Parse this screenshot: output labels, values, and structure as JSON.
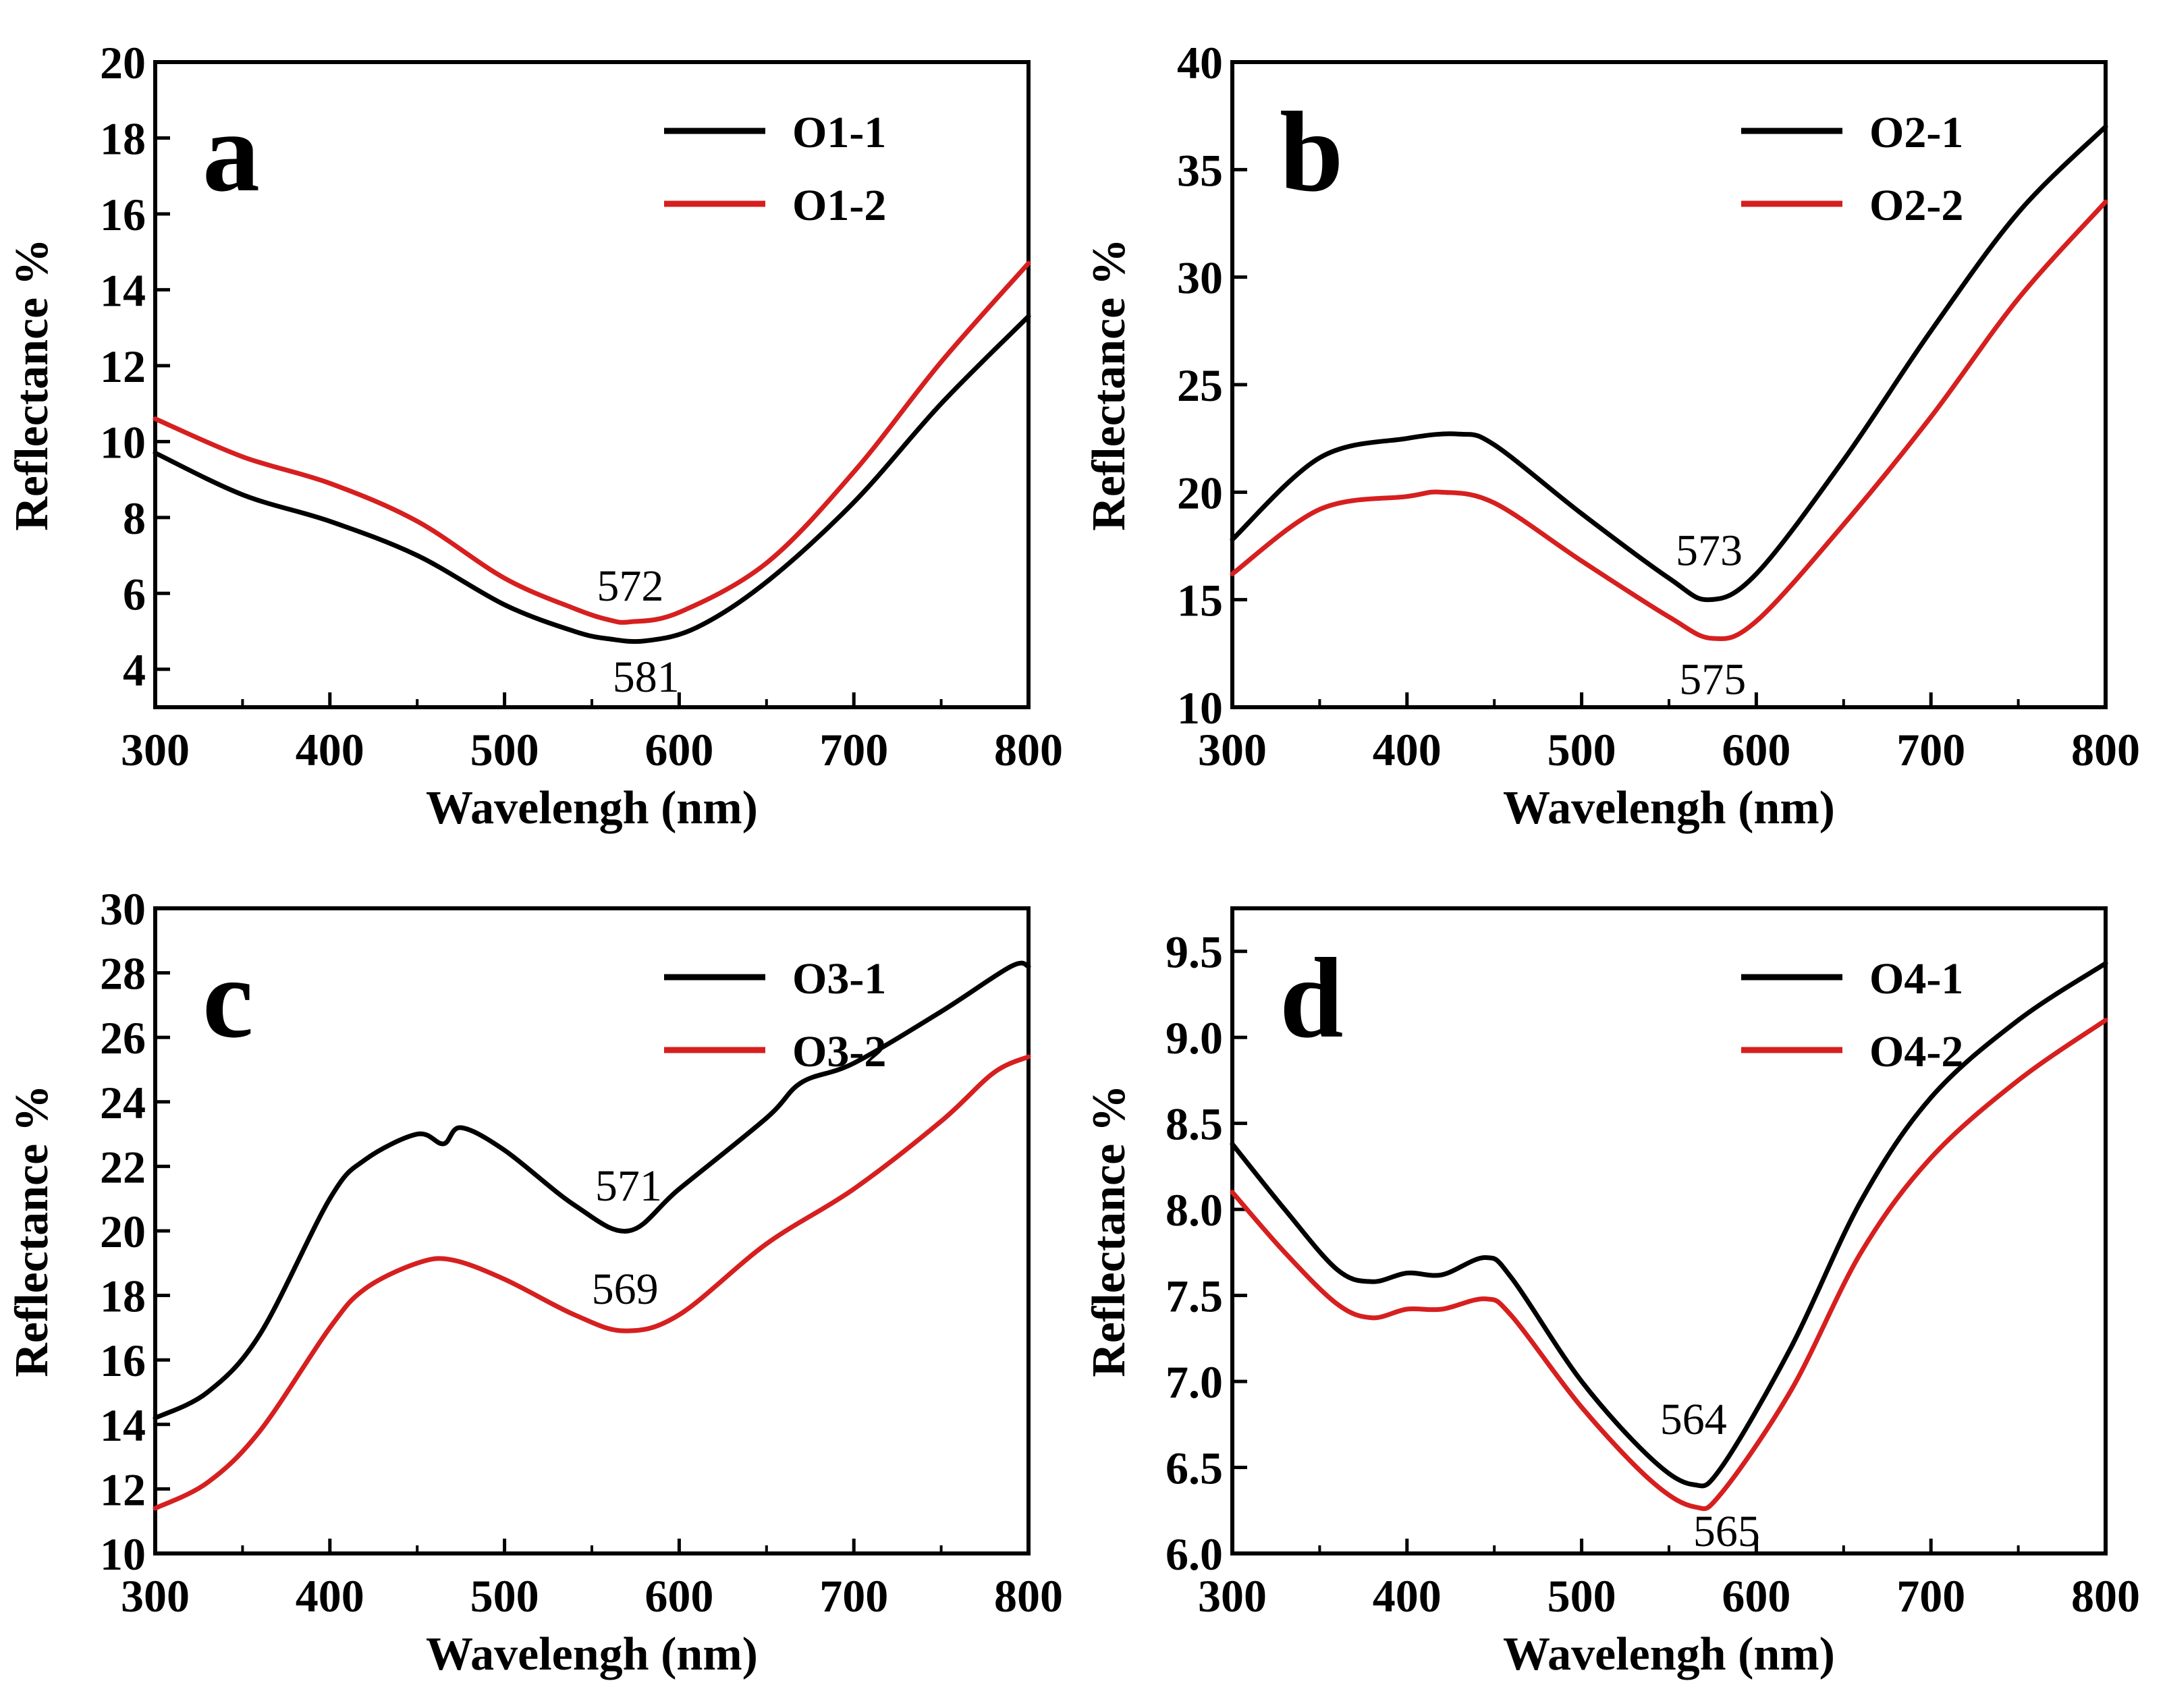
{
  "chart_data": [
    {
      "type": "line",
      "panel_label": "a",
      "xlabel": "Wavelengh (nm)",
      "ylabel": "Reflectance %",
      "xlim": [
        300,
        800
      ],
      "ylim": [
        3,
        20
      ],
      "xticks": [
        300,
        400,
        500,
        600,
        700,
        800
      ],
      "yticks": [
        4,
        6,
        8,
        10,
        12,
        14,
        16,
        18,
        20
      ],
      "legend_position": "top-right",
      "series": [
        {
          "name": "O1-1",
          "color": "#000000",
          "x": [
            300,
            350,
            400,
            450,
            500,
            540,
            560,
            581,
            610,
            650,
            700,
            750,
            800
          ],
          "y": [
            9.7,
            8.6,
            7.9,
            7.0,
            5.7,
            5.0,
            4.8,
            4.75,
            5.1,
            6.3,
            8.4,
            11.0,
            13.3
          ]
        },
        {
          "name": "O1-2",
          "color": "#d61f1f",
          "x": [
            300,
            350,
            400,
            450,
            500,
            540,
            560,
            572,
            600,
            650,
            700,
            750,
            800
          ],
          "y": [
            10.6,
            9.6,
            8.9,
            7.9,
            6.4,
            5.6,
            5.3,
            5.25,
            5.5,
            6.8,
            9.2,
            12.1,
            14.7
          ]
        }
      ],
      "annotations": [
        {
          "text": "572",
          "x": 572,
          "y": 6.2
        },
        {
          "text": "581",
          "x": 581,
          "y": 3.8
        }
      ]
    },
    {
      "type": "line",
      "panel_label": "b",
      "xlabel": "Wavelengh (nm)",
      "ylabel": "Reflectance %",
      "xlim": [
        300,
        800
      ],
      "ylim": [
        10,
        40
      ],
      "xticks": [
        300,
        400,
        500,
        600,
        700,
        800
      ],
      "yticks": [
        10,
        15,
        20,
        25,
        30,
        35,
        40
      ],
      "legend_position": "top-right",
      "series": [
        {
          "name": "O2-1",
          "color": "#000000",
          "x": [
            300,
            350,
            400,
            430,
            450,
            500,
            550,
            573,
            600,
            650,
            700,
            750,
            800
          ],
          "y": [
            17.8,
            21.6,
            22.5,
            22.7,
            22.2,
            19.0,
            16.0,
            15.0,
            16.2,
            21.5,
            27.5,
            33.0,
            37.0
          ]
        },
        {
          "name": "O2-2",
          "color": "#d61f1f",
          "x": [
            300,
            350,
            400,
            420,
            450,
            500,
            550,
            575,
            600,
            650,
            700,
            750,
            800
          ],
          "y": [
            16.2,
            19.2,
            19.8,
            20.0,
            19.5,
            16.8,
            14.2,
            13.2,
            14.0,
            18.5,
            23.5,
            29.0,
            33.5
          ]
        }
      ],
      "annotations": [
        {
          "text": "573",
          "x": 573,
          "y": 17.3
        },
        {
          "text": "575",
          "x": 575,
          "y": 11.3
        }
      ]
    },
    {
      "type": "line",
      "panel_label": "c",
      "xlabel": "Wavelengh (nm)",
      "ylabel": "Reflectance %",
      "xlim": [
        300,
        800
      ],
      "ylim": [
        10,
        30
      ],
      "xticks": [
        300,
        400,
        500,
        600,
        700,
        800
      ],
      "yticks": [
        10,
        12,
        14,
        16,
        18,
        20,
        22,
        24,
        26,
        28,
        30
      ],
      "legend_position": "top-right",
      "series": [
        {
          "name": "O3-1",
          "color": "#000000",
          "x": [
            300,
            330,
            360,
            400,
            420,
            450,
            465,
            475,
            500,
            540,
            571,
            600,
            650,
            670,
            700,
            750,
            790,
            800
          ],
          "y": [
            14.2,
            15.0,
            16.8,
            21.0,
            22.2,
            23.0,
            22.7,
            23.2,
            22.5,
            20.8,
            20.0,
            21.3,
            23.5,
            24.6,
            25.2,
            26.8,
            28.2,
            28.2
          ]
        },
        {
          "name": "O3-2",
          "color": "#d61f1f",
          "x": [
            300,
            330,
            360,
            400,
            420,
            450,
            470,
            500,
            540,
            569,
            600,
            650,
            700,
            750,
            780,
            800
          ],
          "y": [
            11.4,
            12.2,
            13.8,
            17.0,
            18.2,
            19.0,
            19.1,
            18.5,
            17.4,
            16.9,
            17.4,
            19.6,
            21.3,
            23.4,
            24.9,
            25.4
          ]
        }
      ],
      "annotations": [
        {
          "text": "571",
          "x": 571,
          "y": 21.4
        },
        {
          "text": "569",
          "x": 569,
          "y": 18.2
        }
      ]
    },
    {
      "type": "line",
      "panel_label": "d",
      "xlabel": "Wavelengh (nm)",
      "ylabel": "Reflectance %",
      "xlim": [
        300,
        800
      ],
      "ylim": [
        6.0,
        9.75
      ],
      "xticks": [
        300,
        400,
        500,
        600,
        700,
        800
      ],
      "yticks": [
        6.0,
        6.5,
        7.0,
        7.5,
        8.0,
        8.5,
        9.0,
        9.5
      ],
      "legend_position": "top-right",
      "series": [
        {
          "name": "O4-1",
          "color": "#000000",
          "x": [
            300,
            330,
            360,
            380,
            400,
            420,
            445,
            460,
            500,
            540,
            564,
            580,
            620,
            660,
            700,
            750,
            800
          ],
          "y": [
            8.38,
            8.0,
            7.65,
            7.58,
            7.63,
            7.62,
            7.72,
            7.6,
            7.0,
            6.55,
            6.4,
            6.5,
            7.2,
            8.05,
            8.65,
            9.1,
            9.43
          ]
        },
        {
          "name": "O4-2",
          "color": "#d61f1f",
          "x": [
            300,
            330,
            360,
            380,
            400,
            420,
            445,
            460,
            500,
            540,
            565,
            580,
            620,
            660,
            700,
            750,
            800
          ],
          "y": [
            8.1,
            7.75,
            7.45,
            7.37,
            7.42,
            7.42,
            7.48,
            7.38,
            6.85,
            6.42,
            6.27,
            6.35,
            6.95,
            7.75,
            8.3,
            8.75,
            9.1
          ]
        }
      ],
      "annotations": [
        {
          "text": "564",
          "x": 564,
          "y": 6.78
        },
        {
          "text": "565",
          "x": 583,
          "y": 6.13
        }
      ]
    }
  ]
}
